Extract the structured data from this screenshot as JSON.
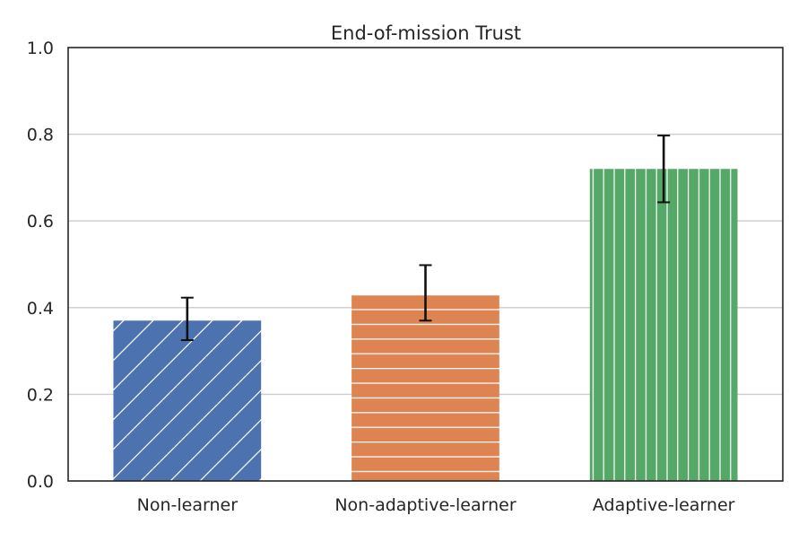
{
  "chart_data": {
    "type": "bar",
    "title": "End-of-mission Trust",
    "xlabel": "",
    "ylabel": "",
    "categories": [
      "Non-learner",
      "Non-adaptive-learner",
      "Adaptive-learner"
    ],
    "values": [
      0.37,
      0.43,
      0.72
    ],
    "error_low": [
      0.325,
      0.37,
      0.643
    ],
    "error_high": [
      0.423,
      0.498,
      0.797
    ],
    "colors": [
      "#4c72b0",
      "#dd8452",
      "#55a868"
    ],
    "hatches": [
      "diagonal",
      "horizontal",
      "vertical"
    ],
    "ylim": [
      0,
      1.0
    ],
    "yticks": [
      "0.0",
      "0.2",
      "0.4",
      "0.6",
      "0.8",
      "1.0"
    ],
    "ytick_values": [
      0,
      0.2,
      0.4,
      0.6,
      0.8,
      1.0
    ],
    "grid": "y"
  }
}
